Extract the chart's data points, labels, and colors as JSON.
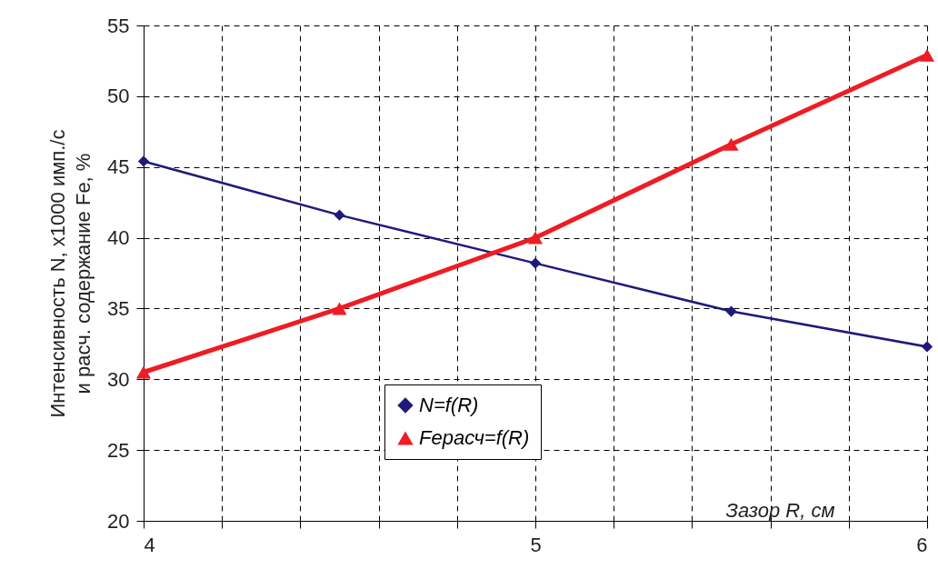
{
  "chart_data": {
    "type": "line",
    "xlabel": "Зазор R, см",
    "ylabel": "Интенсивность N, х1000 имп./с и расч. содержание Fe, %",
    "x": [
      4,
      4.5,
      5,
      5.5,
      6
    ],
    "series": [
      {
        "name": "N=f(R)",
        "color": "#1f1a7a",
        "marker": "diamond",
        "values": [
          45.4,
          41.6,
          38.2,
          34.8,
          32.3
        ]
      },
      {
        "name": "Feрасч=f(R)",
        "color": "#ee1c24",
        "marker": "triangle",
        "values": [
          30.5,
          35.0,
          40.0,
          46.6,
          52.9
        ]
      }
    ],
    "xlim": [
      4,
      6
    ],
    "xticks": [
      4,
      {
        "value": 4.2,
        "label": null
      },
      {
        "value": 4.4,
        "label": null
      },
      {
        "value": 4.6,
        "label": null
      },
      {
        "value": 4.8,
        "label": null
      },
      5,
      {
        "value": 5.2,
        "label": null
      },
      {
        "value": 5.4,
        "label": null
      },
      {
        "value": 5.6,
        "label": null
      },
      {
        "value": 5.8,
        "label": null
      },
      6
    ],
    "ylim": [
      20,
      55
    ],
    "yticks": [
      20,
      25,
      30,
      35,
      40,
      45,
      50,
      55
    ],
    "grid": true,
    "legend": "bottom",
    "line_style": "solid"
  }
}
